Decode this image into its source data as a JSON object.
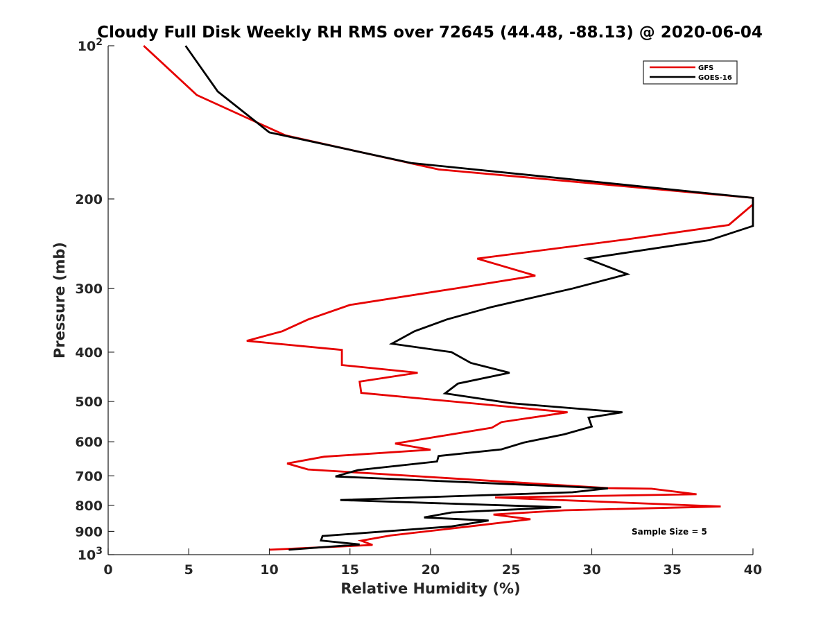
{
  "chart_data": {
    "type": "line",
    "title": "Cloudy Full Disk Weekly RH RMS over 72645 (44.48, -88.13) @ 2020-06-04",
    "xlabel": "Relative Humidity (%)",
    "ylabel": "Pressure (mb)",
    "xlim": [
      0,
      40
    ],
    "ylim": [
      100,
      1000
    ],
    "y_scale": "log",
    "y_reversed": true,
    "grid": false,
    "legend_position": "top-right",
    "x_ticks": [
      0,
      5,
      10,
      15,
      20,
      25,
      30,
      35,
      40
    ],
    "x_tick_labels": [
      "0",
      "5",
      "10",
      "15",
      "20",
      "25",
      "30",
      "35",
      "40"
    ],
    "y_ticks": [
      100,
      200,
      300,
      400,
      500,
      600,
      700,
      800,
      900,
      1000
    ],
    "y_tick_labels": [
      {
        "base": "10",
        "exp": "2"
      },
      {
        "base": "200",
        "exp": ""
      },
      {
        "base": "300",
        "exp": ""
      },
      {
        "base": "400",
        "exp": ""
      },
      {
        "base": "500",
        "exp": ""
      },
      {
        "base": "600",
        "exp": ""
      },
      {
        "base": "700",
        "exp": ""
      },
      {
        "base": "800",
        "exp": ""
      },
      {
        "base": "900",
        "exp": ""
      },
      {
        "base": "10",
        "exp": "3"
      }
    ],
    "annotation": "Sample Size = 5",
    "series": [
      {
        "name": "GFS",
        "color": "#e60000",
        "points": [
          [
            2.2,
            100
          ],
          [
            5.5,
            125
          ],
          [
            11.0,
            150
          ],
          [
            20.5,
            175
          ],
          [
            40.0,
            199
          ],
          [
            40.0,
            205
          ],
          [
            38.5,
            225
          ],
          [
            32.2,
            240
          ],
          [
            22.9,
            262
          ],
          [
            26.5,
            283
          ],
          [
            21.5,
            300
          ],
          [
            15.0,
            323
          ],
          [
            12.4,
            345
          ],
          [
            10.8,
            364
          ],
          [
            8.6,
            380
          ],
          [
            14.5,
            396
          ],
          [
            14.5,
            424
          ],
          [
            19.2,
            439
          ],
          [
            15.6,
            457
          ],
          [
            15.7,
            481
          ],
          [
            28.5,
            525
          ],
          [
            24.4,
            549
          ],
          [
            23.8,
            563
          ],
          [
            20.9,
            583
          ],
          [
            17.8,
            605
          ],
          [
            20.0,
            622
          ],
          [
            13.4,
            642
          ],
          [
            11.1,
            662
          ],
          [
            12.4,
            680
          ],
          [
            31.0,
            740
          ],
          [
            33.7,
            742
          ],
          [
            36.5,
            761
          ],
          [
            24.0,
            772
          ],
          [
            38.0,
            804
          ],
          [
            28.3,
            818
          ],
          [
            23.9,
            834
          ],
          [
            26.2,
            852
          ],
          [
            22.4,
            880
          ],
          [
            17.5,
            917
          ],
          [
            15.7,
            939
          ],
          [
            16.4,
            957
          ],
          [
            10.0,
            978
          ]
        ]
      },
      {
        "name": "GOES-16",
        "color": "#000000",
        "points": [
          [
            4.8,
            100
          ],
          [
            6.8,
            123
          ],
          [
            10.0,
            148
          ],
          [
            18.8,
            170
          ],
          [
            40.0,
            199
          ],
          [
            40.0,
            226
          ],
          [
            37.3,
            241
          ],
          [
            29.7,
            262
          ],
          [
            32.2,
            281
          ],
          [
            28.8,
            300
          ],
          [
            23.8,
            326
          ],
          [
            21.0,
            345
          ],
          [
            19.0,
            364
          ],
          [
            17.6,
            385
          ],
          [
            21.3,
            400
          ],
          [
            22.5,
            420
          ],
          [
            24.9,
            439
          ],
          [
            21.7,
            461
          ],
          [
            20.9,
            482
          ],
          [
            25.0,
            504
          ],
          [
            31.9,
            525
          ],
          [
            29.8,
            538
          ],
          [
            30.0,
            560
          ],
          [
            28.3,
            580
          ],
          [
            25.8,
            602
          ],
          [
            24.4,
            621
          ],
          [
            20.5,
            640
          ],
          [
            20.4,
            656
          ],
          [
            15.5,
            682
          ],
          [
            14.1,
            702
          ],
          [
            31.0,
            741
          ],
          [
            28.8,
            754
          ],
          [
            14.4,
            781
          ],
          [
            28.1,
            807
          ],
          [
            21.3,
            826
          ],
          [
            19.6,
            845
          ],
          [
            23.6,
            857
          ],
          [
            21.3,
            880
          ],
          [
            13.3,
            919
          ],
          [
            13.2,
            938
          ],
          [
            15.6,
            955
          ],
          [
            11.2,
            978
          ]
        ]
      }
    ]
  }
}
